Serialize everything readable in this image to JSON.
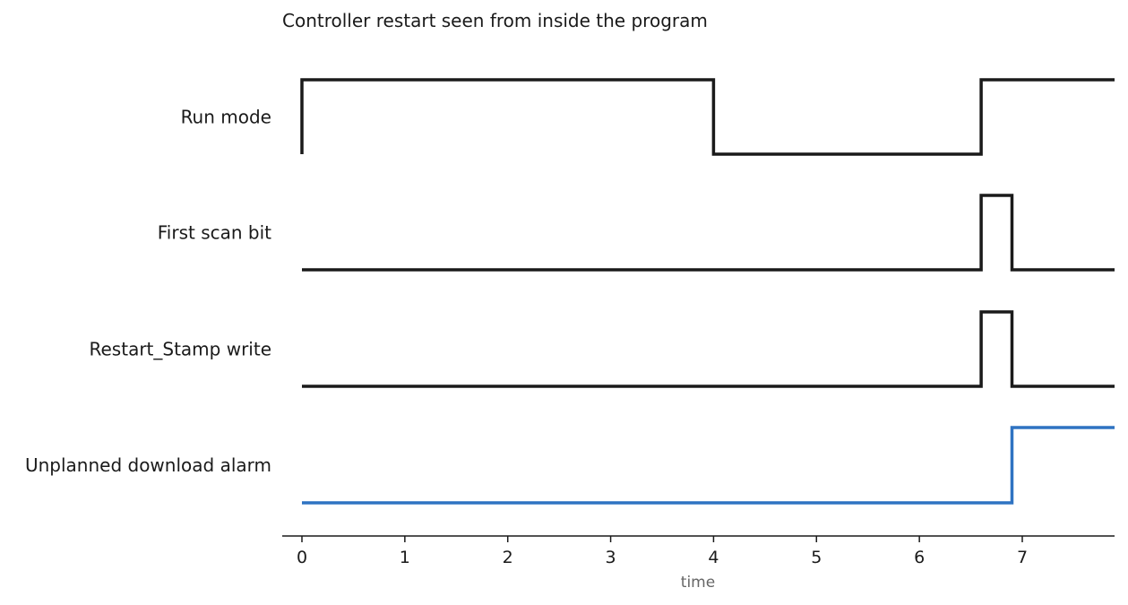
{
  "chart_data": {
    "type": "line",
    "title": "Controller restart seen from inside the program",
    "xlabel": "time",
    "ylabel": "",
    "xlim": [
      -0.2,
      7.9
    ],
    "xticks": [
      0,
      1,
      2,
      3,
      4,
      5,
      6,
      7
    ],
    "grid": false,
    "series": [
      {
        "name": "Run mode",
        "color": "#1a1a1a",
        "points": [
          [
            0,
            0
          ],
          [
            0,
            1
          ],
          [
            4,
            1
          ],
          [
            4,
            0
          ],
          [
            6.6,
            0
          ],
          [
            6.6,
            1
          ],
          [
            7.9,
            1
          ]
        ]
      },
      {
        "name": "First scan bit",
        "color": "#1a1a1a",
        "points": [
          [
            0,
            0
          ],
          [
            6.6,
            0
          ],
          [
            6.6,
            1
          ],
          [
            6.9,
            1
          ],
          [
            6.9,
            0
          ],
          [
            7.9,
            0
          ]
        ]
      },
      {
        "name": "Restart_Stamp write",
        "color": "#1a1a1a",
        "points": [
          [
            0,
            0
          ],
          [
            6.6,
            0
          ],
          [
            6.6,
            1
          ],
          [
            6.9,
            1
          ],
          [
            6.9,
            0
          ],
          [
            7.9,
            0
          ]
        ]
      },
      {
        "name": "Unplanned download alarm",
        "color": "#2f73c2",
        "points": [
          [
            0,
            0
          ],
          [
            6.9,
            0
          ],
          [
            6.9,
            1
          ],
          [
            7.9,
            1
          ]
        ]
      }
    ]
  }
}
